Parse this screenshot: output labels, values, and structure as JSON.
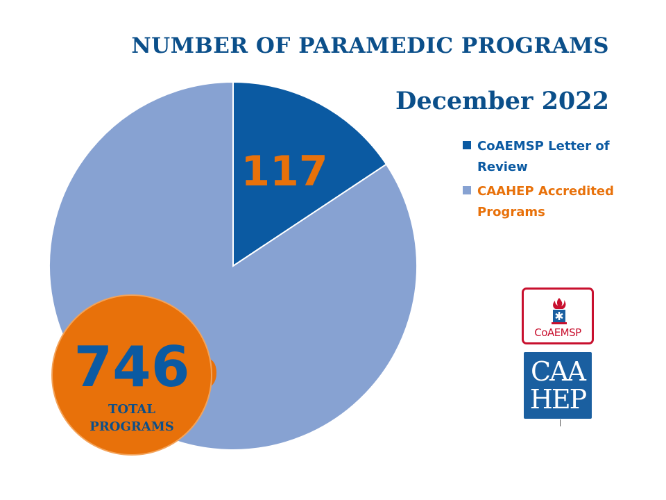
{
  "colors": {
    "title": "#0b4f8a",
    "letter_of_review": "#0b5aa2",
    "accredited": "#87a2d2",
    "accent": "#e8710a",
    "total_number": "#0b5aa2",
    "total_text": "#0b4f8a"
  },
  "chart_data": {
    "type": "pie",
    "title": "NUMBER OF PARAMEDIC PROGRAMS",
    "subtitle": "December 2022",
    "slices": [
      {
        "label": "CoAEMSP Letter of Review",
        "value": 117,
        "color": "#0b5aa2"
      },
      {
        "label": "CAAHEP Accredited Programs",
        "value": 629,
        "color": "#87a2d2"
      }
    ],
    "legend_position": "right",
    "total": {
      "value": "746",
      "label_line1": "TOTAL",
      "label_line2": "PROGRAMS"
    }
  },
  "logos": {
    "coaemsp": {
      "text": "CoAEMSP",
      "icon": "flame-star-of-life-icon"
    },
    "caahep": {
      "line1": "CAA",
      "line2": "HEP"
    }
  }
}
